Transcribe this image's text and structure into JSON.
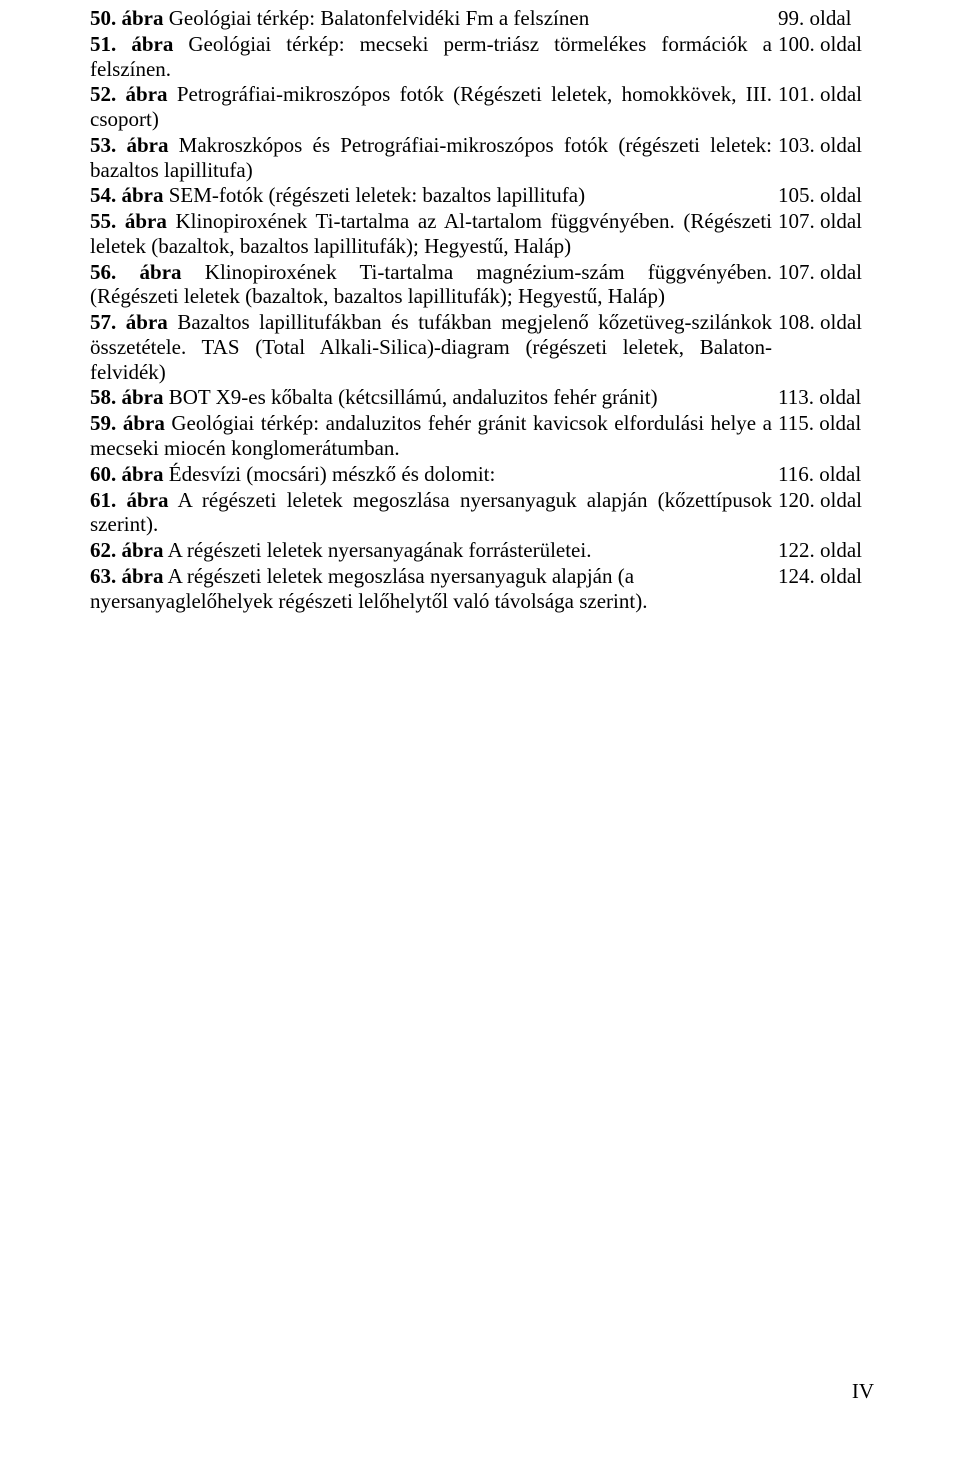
{
  "entries": [
    {
      "num": "50.",
      "label": "ábra",
      "text": " Geológiai térkép: Balatonfelvidéki Fm a felszínen",
      "page": "99. oldal",
      "justify": false
    },
    {
      "num": "51.",
      "label": "ábra",
      "text": " Geológiai térkép: mecseki perm-triász törmelékes formációk a felszínen.",
      "page": "100. oldal",
      "justify": true
    },
    {
      "num": "52.",
      "label": "ábra",
      "text": " Petrográfiai-mikroszópos fotók (Régészeti leletek, homokkövek, III. csoport)",
      "page": "101. oldal",
      "justify": true
    },
    {
      "num": "53.",
      "label": "ábra",
      "text": " Makroszkópos és Petrográfiai-mikroszópos fotók (régészeti leletek: bazaltos lapillitufa)",
      "page": "103. oldal",
      "justify": true
    },
    {
      "num": "54.",
      "label": "ábra",
      "text": " SEM-fotók (régészeti leletek: bazaltos lapillitufa)",
      "page": "105. oldal",
      "justify": false
    },
    {
      "num": "55.",
      "label": "ábra",
      "text": " Klinopiroxének Ti-tartalma az Al-tartalom függvényében. (Régészeti leletek (bazaltok, bazaltos lapillitufák); Hegyestű, Haláp)",
      "page": "107. oldal",
      "justify": true
    },
    {
      "num": "56.",
      "label": "ábra",
      "text": " Klinopiroxének Ti-tartalma magnézium-szám függvényében. (Régészeti leletek (bazaltok, bazaltos lapillitufák); Hegyestű, Haláp)",
      "page": "107. oldal",
      "justify": true
    },
    {
      "num": "57.",
      "label": "ábra",
      "text": " Bazaltos lapillitufákban és tufákban megjelenő kőzetüveg-szilánkok összetétele. TAS (Total Alkali-Silica)-diagram (régészeti leletek, Balaton-felvidék)",
      "page": "108. oldal",
      "justify": true
    },
    {
      "num": "58.",
      "label": "ábra",
      "text": " BOT X9-es kőbalta (kétcsillámú, andaluzitos fehér gránit)",
      "page": "113. oldal",
      "justify": false
    },
    {
      "num": "59.",
      "label": "ábra",
      "text": " Geológiai térkép: andaluzitos fehér gránit kavicsok elfordulási helye a mecseki miocén konglomerátumban.",
      "page": "115. oldal",
      "justify": true
    },
    {
      "num": "60.",
      "label": "ábra",
      "text": " Édesvízi (mocsári) mészkő és dolomit:",
      "page": "116. oldal",
      "justify": false
    },
    {
      "num": "61.",
      "label": "ábra",
      "text": " A régészeti leletek megoszlása nyersanyaguk alapján (kőzettípusok szerint).",
      "page": "120. oldal",
      "justify": true
    },
    {
      "num": "62.",
      "label": "ábra",
      "text": " A régészeti leletek nyersanyagának forrásterületei.",
      "page": "122. oldal",
      "justify": false
    },
    {
      "num": "63.",
      "label": "ábra",
      "text": " A régészeti leletek megoszlása nyersanyaguk alapján (a nyersanyaglelőhelyek régészeti lelőhelytől való távolsága szerint).",
      "page": "124. oldal",
      "justify": false
    }
  ],
  "pageNumber": "IV"
}
